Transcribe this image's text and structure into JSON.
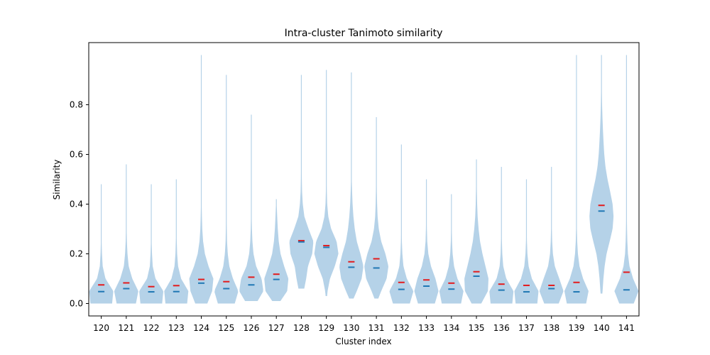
{
  "chart_data": {
    "type": "violin",
    "title": "Intra-cluster Tanimoto similarity",
    "xlabel": "Cluster index",
    "ylabel": "Similarity",
    "ylim": [
      -0.05,
      1.05
    ],
    "yticks": [
      0.0,
      0.2,
      0.4,
      0.6,
      0.8
    ],
    "ytick_labels": [
      "0.0",
      "0.2",
      "0.4",
      "0.6",
      "0.8"
    ],
    "grid": false,
    "colors": {
      "violin": "#b5d2e8",
      "mean": "#e31a1c",
      "median": "#1f77b4"
    },
    "categories": [
      "120",
      "121",
      "122",
      "123",
      "124",
      "125",
      "126",
      "127",
      "128",
      "129",
      "130",
      "131",
      "132",
      "133",
      "134",
      "135",
      "136",
      "137",
      "138",
      "139",
      "140",
      "141"
    ],
    "min": [
      0.0,
      0.0,
      0.0,
      0.0,
      0.0,
      0.0,
      0.01,
      0.01,
      0.06,
      0.03,
      0.02,
      0.02,
      0.0,
      0.0,
      0.0,
      0.0,
      0.0,
      0.0,
      0.0,
      0.0,
      0.04,
      0.0
    ],
    "max": [
      0.48,
      0.56,
      0.48,
      0.5,
      1.0,
      0.92,
      0.76,
      0.42,
      0.92,
      0.94,
      0.93,
      0.75,
      0.64,
      0.5,
      0.44,
      0.58,
      0.55,
      0.5,
      0.55,
      1.0,
      1.0,
      1.0
    ],
    "means": [
      0.075,
      0.083,
      0.068,
      0.072,
      0.097,
      0.088,
      0.106,
      0.118,
      0.253,
      0.233,
      0.168,
      0.18,
      0.085,
      0.095,
      0.082,
      0.128,
      0.078,
      0.073,
      0.073,
      0.085,
      0.395,
      0.126
    ],
    "medians": [
      0.048,
      0.06,
      0.047,
      0.048,
      0.082,
      0.06,
      0.075,
      0.097,
      0.248,
      0.226,
      0.146,
      0.143,
      0.057,
      0.07,
      0.058,
      0.11,
      0.054,
      0.047,
      0.06,
      0.047,
      0.372,
      0.055
    ],
    "profile_y": [
      0.0,
      0.05,
      0.1,
      0.15,
      0.2,
      0.25,
      0.3,
      0.35,
      0.4,
      0.45,
      0.5,
      0.55,
      0.6,
      0.65,
      0.7,
      0.75,
      0.8,
      0.85,
      0.9,
      0.95,
      1.0
    ],
    "profiles": [
      [
        0.9,
        1.0,
        0.35,
        0.12,
        0.06,
        0.03,
        0.02,
        0.01,
        0.01,
        0.005,
        0,
        0,
        0,
        0,
        0,
        0,
        0,
        0,
        0,
        0,
        0
      ],
      [
        0.8,
        1.0,
        0.5,
        0.2,
        0.1,
        0.05,
        0.03,
        0.02,
        0.01,
        0.01,
        0.005,
        0.005,
        0,
        0,
        0,
        0,
        0,
        0,
        0,
        0,
        0
      ],
      [
        0.9,
        1.0,
        0.35,
        0.12,
        0.06,
        0.03,
        0.02,
        0.01,
        0.01,
        0.005,
        0,
        0,
        0,
        0,
        0,
        0,
        0,
        0,
        0,
        0,
        0
      ],
      [
        0.9,
        1.0,
        0.4,
        0.15,
        0.07,
        0.04,
        0.02,
        0.01,
        0.01,
        0.005,
        0.003,
        0,
        0,
        0,
        0,
        0,
        0,
        0,
        0,
        0,
        0
      ],
      [
        0.5,
        0.9,
        1.0,
        0.6,
        0.3,
        0.15,
        0.08,
        0.05,
        0.03,
        0.02,
        0.015,
        0.01,
        0.01,
        0.008,
        0.006,
        0.005,
        0.005,
        0.004,
        0.004,
        0.003,
        0.003
      ],
      [
        0.7,
        1.0,
        0.55,
        0.25,
        0.12,
        0.06,
        0.04,
        0.03,
        0.02,
        0.015,
        0.01,
        0.01,
        0.008,
        0.006,
        0.005,
        0.004,
        0.004,
        0.003,
        0.003,
        0,
        0
      ],
      [
        0.4,
        1.0,
        0.85,
        0.4,
        0.18,
        0.09,
        0.05,
        0.03,
        0.02,
        0.015,
        0.01,
        0.01,
        0.008,
        0.006,
        0.005,
        0.004,
        0,
        0,
        0,
        0,
        0
      ],
      [
        0.2,
        0.9,
        1.0,
        0.65,
        0.35,
        0.2,
        0.12,
        0.07,
        0.03,
        0,
        0,
        0,
        0,
        0,
        0,
        0,
        0,
        0,
        0,
        0,
        0
      ],
      [
        0,
        0.2,
        0.4,
        0.55,
        0.9,
        1.0,
        0.6,
        0.25,
        0.12,
        0.06,
        0.04,
        0.03,
        0.02,
        0.015,
        0.01,
        0.008,
        0.006,
        0.005,
        0.004,
        0,
        0
      ],
      [
        0,
        0.1,
        0.3,
        0.7,
        1.0,
        0.85,
        0.4,
        0.16,
        0.07,
        0.04,
        0.03,
        0.02,
        0.015,
        0.01,
        0.008,
        0.006,
        0.005,
        0.004,
        0.004,
        0.003,
        0
      ],
      [
        0,
        0.45,
        0.85,
        1.0,
        0.75,
        0.45,
        0.28,
        0.17,
        0.1,
        0.06,
        0.03,
        0.02,
        0.015,
        0.01,
        0.008,
        0.006,
        0.005,
        0.004,
        0.003,
        0,
        0
      ],
      [
        0,
        0.4,
        0.85,
        1.0,
        0.75,
        0.4,
        0.2,
        0.1,
        0.06,
        0.04,
        0.03,
        0.02,
        0.015,
        0.01,
        0.008,
        0.006,
        0,
        0,
        0,
        0,
        0
      ],
      [
        0.7,
        1.0,
        0.45,
        0.17,
        0.08,
        0.04,
        0.03,
        0.02,
        0.015,
        0.01,
        0.008,
        0.006,
        0.005,
        0,
        0,
        0,
        0,
        0,
        0,
        0,
        0
      ],
      [
        0.7,
        1.0,
        0.75,
        0.38,
        0.16,
        0.07,
        0.04,
        0.025,
        0.015,
        0.01,
        0.008,
        0,
        0,
        0,
        0,
        0,
        0,
        0,
        0,
        0,
        0
      ],
      [
        0.8,
        1.0,
        0.5,
        0.22,
        0.1,
        0.05,
        0.03,
        0.02,
        0.01,
        0.005,
        0,
        0,
        0,
        0,
        0,
        0,
        0,
        0,
        0,
        0,
        0
      ],
      [
        0.4,
        0.95,
        1.0,
        0.75,
        0.5,
        0.3,
        0.18,
        0.1,
        0.06,
        0.04,
        0.025,
        0.015,
        0.008,
        0,
        0,
        0,
        0,
        0,
        0,
        0,
        0
      ],
      [
        0.9,
        1.0,
        0.4,
        0.15,
        0.07,
        0.04,
        0.025,
        0.015,
        0.01,
        0.008,
        0.006,
        0.005,
        0,
        0,
        0,
        0,
        0,
        0,
        0,
        0,
        0
      ],
      [
        0.9,
        1.0,
        0.45,
        0.18,
        0.08,
        0.04,
        0.025,
        0.015,
        0.01,
        0.008,
        0.006,
        0,
        0,
        0,
        0,
        0,
        0,
        0,
        0,
        0,
        0
      ],
      [
        0.6,
        1.0,
        0.65,
        0.28,
        0.12,
        0.06,
        0.035,
        0.02,
        0.015,
        0.01,
        0.008,
        0.006,
        0,
        0,
        0,
        0,
        0,
        0,
        0,
        0,
        0
      ],
      [
        0.8,
        1.0,
        0.55,
        0.25,
        0.12,
        0.06,
        0.035,
        0.025,
        0.02,
        0.015,
        0.01,
        0.008,
        0.006,
        0.006,
        0.005,
        0.005,
        0.004,
        0.004,
        0.003,
        0.003,
        0.003
      ],
      [
        0,
        0.09,
        0.16,
        0.26,
        0.42,
        0.68,
        0.92,
        1.0,
        0.92,
        0.72,
        0.5,
        0.33,
        0.23,
        0.17,
        0.12,
        0.08,
        0.05,
        0.035,
        0.028,
        0.025,
        0.025
      ],
      [
        0.6,
        1.0,
        0.55,
        0.25,
        0.12,
        0.07,
        0.045,
        0.03,
        0.025,
        0.02,
        0.015,
        0.012,
        0.01,
        0.008,
        0.007,
        0.006,
        0.005,
        0.004,
        0.004,
        0.003,
        0.003
      ]
    ]
  }
}
